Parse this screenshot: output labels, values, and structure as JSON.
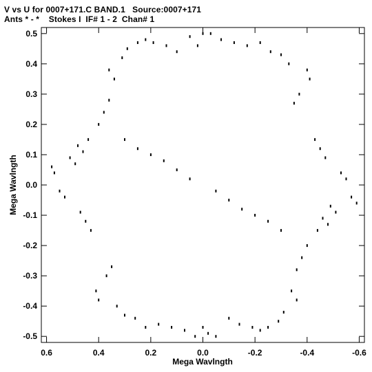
{
  "header": {
    "line1": "V vs U for 0007+171.C BAND.1   Source:0007+171",
    "line2": "Ants * - *    Stokes I  IF# 1 - 2  Chan# 1"
  },
  "chart_data": {
    "type": "scatter",
    "title": "V vs U for 0007+171.C BAND.1   Source:0007+171",
    "subtitle": "Ants * - *    Stokes I  IF# 1 - 2  Chan# 1",
    "xlabel": "Mega Wavlngth",
    "ylabel": "Mega Wavlngth",
    "xlim": [
      0.62,
      -0.62
    ],
    "ylim": [
      -0.52,
      0.52
    ],
    "x_reversed": true,
    "xticks": [
      0.6,
      0.4,
      0.2,
      0.0,
      -0.2,
      -0.4,
      -0.6
    ],
    "xtick_labels": [
      "0.6",
      "0.4",
      "0.2",
      "0.0",
      "-0.2",
      "-0.4",
      "-0.6"
    ],
    "yticks": [
      0.5,
      0.4,
      0.3,
      0.2,
      0.1,
      0.0,
      -0.1,
      -0.2,
      -0.3,
      -0.4,
      -0.5
    ],
    "ytick_labels": [
      "0.5",
      "0.4",
      "0.3",
      "0.2",
      "0.1",
      "0.0",
      "-0.1",
      "-0.2",
      "-0.3",
      "-0.4",
      "-0.5"
    ],
    "grid": false,
    "marker_color": "#000000",
    "series": [
      {
        "values": [
          [
            0.58,
            0.06
          ],
          [
            0.57,
            0.04
          ],
          [
            0.55,
            -0.02
          ],
          [
            0.53,
            -0.04
          ],
          [
            0.51,
            0.09
          ],
          [
            0.49,
            0.07
          ],
          [
            -0.59,
            -0.06
          ],
          [
            -0.57,
            -0.04
          ],
          [
            -0.55,
            0.02
          ],
          [
            -0.53,
            0.04
          ],
          [
            -0.51,
            -0.09
          ],
          [
            -0.49,
            -0.07
          ],
          [
            0.48,
            0.13
          ],
          [
            0.46,
            0.11
          ],
          [
            0.44,
            0.15
          ],
          [
            0.47,
            -0.09
          ],
          [
            0.45,
            -0.12
          ],
          [
            0.43,
            -0.15
          ],
          [
            -0.48,
            -0.13
          ],
          [
            -0.46,
            -0.11
          ],
          [
            -0.44,
            -0.15
          ],
          [
            -0.47,
            0.09
          ],
          [
            -0.45,
            0.12
          ],
          [
            -0.43,
            0.15
          ],
          [
            0.4,
            0.2
          ],
          [
            0.38,
            0.24
          ],
          [
            0.36,
            0.28
          ],
          [
            0.36,
            0.38
          ],
          [
            0.34,
            0.35
          ],
          [
            0.31,
            0.42
          ],
          [
            0.29,
            0.45
          ],
          [
            0.25,
            0.47
          ],
          [
            0.22,
            0.48
          ],
          [
            0.19,
            0.47
          ],
          [
            0.14,
            0.46
          ],
          [
            0.1,
            0.44
          ],
          [
            -0.4,
            -0.2
          ],
          [
            -0.38,
            -0.24
          ],
          [
            -0.36,
            -0.28
          ],
          [
            -0.36,
            -0.38
          ],
          [
            -0.34,
            -0.35
          ],
          [
            -0.31,
            -0.42
          ],
          [
            -0.29,
            -0.45
          ],
          [
            -0.25,
            -0.47
          ],
          [
            -0.22,
            -0.48
          ],
          [
            -0.19,
            -0.47
          ],
          [
            -0.14,
            -0.46
          ],
          [
            -0.1,
            -0.44
          ],
          [
            0.41,
            -0.35
          ],
          [
            0.4,
            -0.38
          ],
          [
            0.37,
            -0.3
          ],
          [
            0.35,
            -0.27
          ],
          [
            0.33,
            -0.4
          ],
          [
            0.3,
            -0.43
          ],
          [
            0.26,
            -0.44
          ],
          [
            0.22,
            -0.47
          ],
          [
            0.17,
            -0.46
          ],
          [
            0.12,
            -0.47
          ],
          [
            0.07,
            -0.48
          ],
          [
            0.03,
            -0.5
          ],
          [
            -0.41,
            0.35
          ],
          [
            -0.4,
            0.38
          ],
          [
            -0.37,
            0.3
          ],
          [
            -0.35,
            0.27
          ],
          [
            -0.33,
            0.4
          ],
          [
            -0.3,
            0.43
          ],
          [
            -0.26,
            0.44
          ],
          [
            -0.22,
            0.47
          ],
          [
            -0.17,
            0.46
          ],
          [
            -0.12,
            0.47
          ],
          [
            -0.07,
            0.48
          ],
          [
            -0.03,
            0.5
          ],
          [
            0.0,
            0.5
          ],
          [
            0.02,
            0.46
          ],
          [
            -0.02,
            -0.49
          ],
          [
            0.0,
            -0.47
          ],
          [
            0.05,
            0.49
          ],
          [
            -0.05,
            -0.5
          ],
          [
            0.2,
            0.1
          ],
          [
            0.15,
            0.08
          ],
          [
            0.1,
            0.05
          ],
          [
            0.05,
            0.02
          ],
          [
            -0.05,
            -0.02
          ],
          [
            -0.1,
            -0.05
          ],
          [
            -0.15,
            -0.08
          ],
          [
            -0.2,
            -0.1
          ],
          [
            -0.25,
            -0.12
          ],
          [
            0.25,
            0.12
          ],
          [
            0.3,
            0.15
          ],
          [
            -0.3,
            -0.15
          ]
        ]
      }
    ]
  }
}
